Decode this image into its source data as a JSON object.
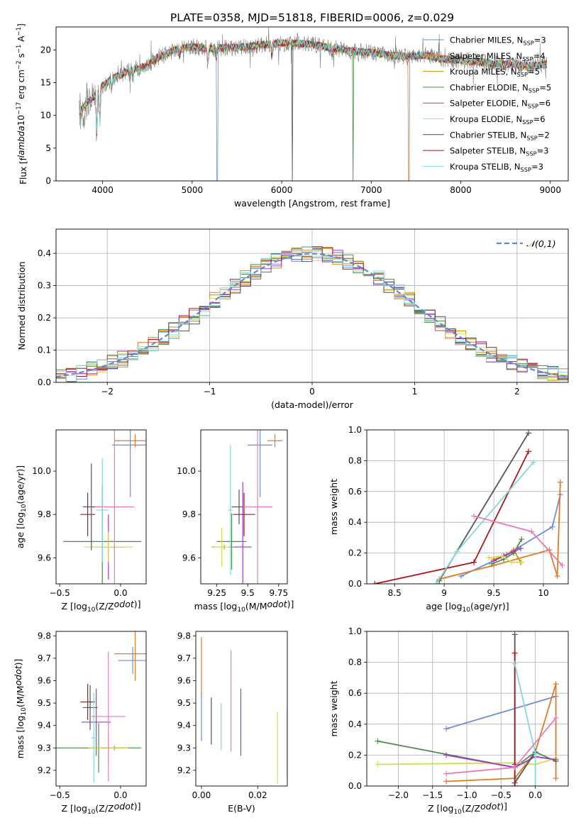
{
  "figure_title": "PLATE=0358, MJD=51818, FIBERID=0006, z=0.029",
  "colors": {
    "Chabrier MILES": "#6a8fd8",
    "Salpeter MILES": "#e07b28",
    "Kroupa MILES": "#c8960a",
    "Chabrier ELODIE": "#4d8a4d",
    "Salpeter ELODIE": "#a03cc0",
    "Kroupa ELODIE": "#d4dc50",
    "Chabrier STELIB": "#555555",
    "Salpeter STELIB": "#a81818",
    "Kroupa STELIB": "#84d8d8",
    "pink": "#e87ab8",
    "grey_data": "#7f7f7f"
  },
  "chart_data": [
    {
      "id": "spectrum",
      "type": "line",
      "title": "PLATE=0358, MJD=51818, FIBERID=0006, z=0.029",
      "xlabel": "wavelength [Angstrom, rest frame]",
      "ylabel": "Flux [f$_\\lambda$10$^{-17}$ erg cm$^{-2}$ s$^{-1}$ A$^{-1}$]",
      "xlim": [
        3480,
        9200
      ],
      "ylim": [
        0,
        23.5
      ],
      "xticks": [
        4000,
        5000,
        6000,
        7000,
        8000,
        9000
      ],
      "yticks": [
        0,
        5,
        10,
        15,
        20
      ],
      "grid": false,
      "legend_position": "top-right",
      "legend": [
        {
          "label": "Chabrier MILES, N$_{SSP}$=3",
          "series": "Chabrier MILES"
        },
        {
          "label": "Salpeter MILES, N$_{SSP}$=4",
          "series": "Salpeter MILES"
        },
        {
          "label": "Kroupa MILES, N$_{SSP}$=5",
          "series": "Kroupa MILES"
        },
        {
          "label": "Chabrier ELODIE, N$_{SSP}$=5",
          "series": "Chabrier ELODIE"
        },
        {
          "label": "Salpeter ELODIE, N$_{SSP}$=6",
          "series": "Salpeter ELODIE"
        },
        {
          "label": "Kroupa ELODIE, N$_{SSP}$=6",
          "series": "Kroupa ELODIE"
        },
        {
          "label": "Chabrier STELIB, N$_{SSP}$=2",
          "series": "Chabrier STELIB"
        },
        {
          "label": "Salpeter STELIB, N$_{SSP}$=3",
          "series": "Salpeter STELIB"
        },
        {
          "label": "Kroupa STELIB, N$_{SSP}$=3",
          "series": "Kroupa STELIB"
        }
      ],
      "data_envelope": {
        "x": [
          3750,
          3800,
          3900,
          4000,
          4100,
          4200,
          4300,
          4400,
          4500,
          4600,
          4700,
          4800,
          5000,
          5200,
          5400,
          5600,
          5800,
          6000,
          6200,
          6400,
          6600,
          6800,
          7000,
          7200,
          7400,
          7600,
          7800,
          8000,
          8200,
          8400,
          8600,
          8800,
          8950
        ],
        "y": [
          10.5,
          11.5,
          12.8,
          14.5,
          15.5,
          16.2,
          17.0,
          17.2,
          17.5,
          18.8,
          19.2,
          20.0,
          20.5,
          20.2,
          20.3,
          20.5,
          20.8,
          21.0,
          21.0,
          20.7,
          20.2,
          19.8,
          19.6,
          19.2,
          19.0,
          19.2,
          18.6,
          18.4,
          18.2,
          17.9,
          17.7,
          17.6,
          17.8
        ]
      },
      "absorption_features": [
        {
          "x": 3934,
          "depth": 6.0
        },
        {
          "x": 3969,
          "depth": 5.5
        },
        {
          "x": 4102,
          "depth": 1.5
        },
        {
          "x": 4305,
          "depth": 2.0
        },
        {
          "x": 4340,
          "depth": 1.5
        },
        {
          "x": 4861,
          "depth": 1.2
        },
        {
          "x": 5175,
          "depth": 2.5
        },
        {
          "x": 5270,
          "depth": 1.3
        },
        {
          "x": 5890,
          "depth": 2.0
        },
        {
          "x": 6563,
          "depth": 1.0
        }
      ],
      "artifact_drops": [
        {
          "x": 5280,
          "series": "Chabrier MILES"
        },
        {
          "x": 6120,
          "series": "Chabrier STELIB"
        },
        {
          "x": 6800,
          "series": "Chabrier ELODIE"
        },
        {
          "x": 7420,
          "series": "Salpeter MILES"
        }
      ]
    },
    {
      "id": "residuals",
      "type": "histogram",
      "xlabel": "(data-model)/error",
      "ylabel": "Normed distribution",
      "xlim": [
        -2.5,
        2.5
      ],
      "ylim": [
        0,
        0.475
      ],
      "xticks": [
        -2,
        -1,
        0,
        1,
        2
      ],
      "yticks": [
        0.0,
        0.1,
        0.2,
        0.3,
        0.4
      ],
      "grid": true,
      "legend_position": "top-right",
      "legend": [
        {
          "label": "$\\mathcal{N}(0,1)$",
          "style": "dashed",
          "color": "#5b8bd8"
        }
      ],
      "bin_width": 0.1,
      "bin_start": -2.5,
      "normal_pdf": {
        "mu": 0,
        "sigma": 1
      },
      "bin_jitter_seeds": [
        3,
        7,
        11,
        17,
        23,
        29,
        31,
        37,
        41
      ]
    },
    {
      "id": "age_vs_Z",
      "type": "errorbar",
      "xlabel": "Z [log$_{10}$(Z/Z$_\\odot$)]",
      "ylabel": "age  [log$_{10}$(age/yr)]",
      "xlim": [
        -0.53,
        0.21
      ],
      "ylim": [
        9.48,
        10.19
      ],
      "xticks": [
        -0.5,
        0.0
      ],
      "xticklabels": [
        "−0.5",
        "0.0"
      ],
      "yticks": [
        9.6,
        9.8,
        10.0
      ],
      "grid": false,
      "points": [
        {
          "series": "Chabrier MILES",
          "x": 0.08,
          "y": 10.12,
          "xerr": 0.15,
          "yerr": 0.24
        },
        {
          "series": "Salpeter MILES",
          "x": 0.12,
          "y": 10.14,
          "xerr": 0.17,
          "yerr": 0.03
        },
        {
          "series": "Kroupa MILES",
          "x": -0.05,
          "y": 9.65,
          "xerr": 0.1,
          "yerr": 0.01
        },
        {
          "series": "Chabrier ELODIE",
          "x": -0.15,
          "y": 9.675,
          "xerr": 0.32,
          "yerr": 0.26
        },
        {
          "series": "Salpeter ELODIE",
          "x": -0.1,
          "y": 9.65,
          "xerr": 0.13,
          "yerr": 0.15
        },
        {
          "series": "Kroupa ELODIE",
          "x": -0.1,
          "y": 9.65,
          "xerr": 0.2,
          "yerr": 0.07
        },
        {
          "series": "Chabrier STELIB",
          "x": -0.24,
          "y": 9.835,
          "xerr": 0.07,
          "yerr": 0.2
        },
        {
          "series": "Salpeter STELIB",
          "x": -0.27,
          "y": 9.8,
          "xerr": 0.06,
          "yerr": 0.1
        },
        {
          "series": "Kroupa STELIB",
          "x": -0.15,
          "y": 9.82,
          "xerr": 0.05,
          "yerr": 0.24
        },
        {
          "series": "pink",
          "x": -0.05,
          "y": 9.835,
          "xerr": 0.16,
          "yerr": 0.5
        }
      ]
    },
    {
      "id": "age_vs_mass",
      "type": "errorbar",
      "xlabel": "mass [log$_{10}$(M/M$_\\odot$)]",
      "ylabel": "",
      "xlim": [
        9.12,
        9.82
      ],
      "ylim": [
        9.48,
        10.19
      ],
      "xticks": [
        9.25,
        9.5,
        9.75
      ],
      "yticks": [
        9.6,
        9.8,
        10.0
      ],
      "grid": false,
      "points": [
        {
          "series": "Chabrier MILES",
          "x": 9.6,
          "y": 10.12,
          "xerr": 0.1,
          "yerr": 0.24
        },
        {
          "series": "Salpeter MILES",
          "x": 9.72,
          "y": 10.14,
          "xerr": 0.06,
          "yerr": 0.03
        },
        {
          "series": "Kroupa MILES",
          "x": 9.31,
          "y": 9.65,
          "xerr": 0.1,
          "yerr": 0.01
        },
        {
          "series": "Chabrier ELODIE",
          "x": 9.37,
          "y": 9.675,
          "xerr": 0.12,
          "yerr": 0.13
        },
        {
          "series": "Salpeter ELODIE",
          "x": 9.46,
          "y": 9.65,
          "xerr": 0.07,
          "yerr": 0.3
        },
        {
          "series": "Kroupa ELODIE",
          "x": 9.29,
          "y": 9.65,
          "xerr": 0.06,
          "yerr": 0.09
        },
        {
          "series": "Chabrier STELIB",
          "x": 9.43,
          "y": 9.835,
          "xerr": 0.06,
          "yerr": 0.08
        },
        {
          "series": "Salpeter STELIB",
          "x": 9.47,
          "y": 9.8,
          "xerr": 0.09,
          "yerr": 0.1
        },
        {
          "series": "Kroupa STELIB",
          "x": 9.36,
          "y": 9.82,
          "xerr": 0.02,
          "yerr": 0.3
        },
        {
          "series": "pink",
          "x": 9.58,
          "y": 9.835,
          "xerr": 0.12,
          "yerr": 0.5
        }
      ]
    },
    {
      "id": "mass_weight_vs_age",
      "type": "line",
      "xlabel": "age  [log$_{10}$(age/yr)]",
      "ylabel": "mass weight",
      "xlim": [
        8.22,
        10.25
      ],
      "ylim": [
        0,
        1.0
      ],
      "xticks": [
        8.5,
        9.0,
        9.5,
        10.0
      ],
      "yticks": [
        0.0,
        0.2,
        0.4,
        0.6,
        0.8,
        1.0
      ],
      "grid": true,
      "series": [
        {
          "name": "Chabrier MILES",
          "x": [
            9.17,
            9.63,
            10.09,
            10.17
          ],
          "y": [
            0.05,
            0.19,
            0.37,
            0.58
          ]
        },
        {
          "name": "Salpeter MILES",
          "x": [
            8.95,
            9.5,
            10.06,
            10.14,
            10.17
          ],
          "y": [
            0.03,
            0.12,
            0.22,
            0.05,
            0.66
          ]
        },
        {
          "name": "Kroupa MILES",
          "x": [
            9.5,
            9.6,
            9.7,
            9.77
          ],
          "y": [
            0.16,
            0.18,
            0.22,
            0.14
          ]
        },
        {
          "name": "Chabrier ELODIE",
          "x": [
            9.48,
            9.6,
            9.7,
            9.78
          ],
          "y": [
            0.13,
            0.16,
            0.2,
            0.29
          ]
        },
        {
          "name": "Salpeter ELODIE",
          "x": [
            9.5,
            9.6,
            9.7,
            9.77
          ],
          "y": [
            0.15,
            0.18,
            0.21,
            0.23
          ]
        },
        {
          "name": "Kroupa ELODIE",
          "x": [
            9.45,
            9.58,
            9.68,
            9.78
          ],
          "y": [
            0.17,
            0.18,
            0.14,
            0.14
          ]
        },
        {
          "name": "Chabrier STELIB",
          "x": [
            8.95,
            9.85
          ],
          "y": [
            0.02,
            0.98
          ]
        },
        {
          "name": "Salpeter STELIB",
          "x": [
            8.3,
            9.3,
            9.85
          ],
          "y": [
            0.0,
            0.14,
            0.86
          ]
        },
        {
          "name": "Kroupa STELIB",
          "x": [
            8.92,
            9.13,
            9.9
          ],
          "y": [
            0.0,
            0.21,
            0.79
          ]
        },
        {
          "name": "pink",
          "x": [
            9.3,
            9.88,
            10.19
          ],
          "y": [
            0.44,
            0.34,
            0.12
          ]
        }
      ]
    },
    {
      "id": "mass_vs_Z",
      "type": "errorbar",
      "xlabel": "Z [log$_{10}$(Z/Z$_\\odot$)]",
      "ylabel": "mass [log$_{10}$(M/M$_\\odot$)]",
      "xlim": [
        -0.53,
        0.21
      ],
      "ylim": [
        9.13,
        9.82
      ],
      "xticks": [
        -0.5,
        0.0
      ],
      "xticklabels": [
        "−0.5",
        "0.0"
      ],
      "yticks": [
        9.2,
        9.3,
        9.4,
        9.5,
        9.6,
        9.7,
        9.8
      ],
      "grid": false,
      "points": [
        {
          "series": "Chabrier MILES",
          "x": 0.1,
          "y": 9.69,
          "xerr": 0.12,
          "yerr": 0.06
        },
        {
          "series": "Salpeter MILES",
          "x": 0.12,
          "y": 9.72,
          "xerr": 0.17,
          "yerr": 0.12
        },
        {
          "series": "Kroupa MILES",
          "x": -0.05,
          "y": 9.3,
          "xerr": 0.1,
          "yerr": 0.01
        },
        {
          "series": "Chabrier ELODIE",
          "x": -0.18,
          "y": 9.3,
          "xerr": 0.35,
          "yerr": 0.11
        },
        {
          "series": "Salpeter ELODIE",
          "x": -0.2,
          "y": 9.415,
          "xerr": 0.12,
          "yerr": 0.15
        },
        {
          "series": "Kroupa ELODIE",
          "x": -0.1,
          "y": 9.3,
          "xerr": 0.16,
          "yerr": 0.07
        },
        {
          "series": "Chabrier STELIB",
          "x": -0.25,
          "y": 9.48,
          "xerr": 0.06,
          "yerr": 0.1
        },
        {
          "series": "Salpeter STELIB",
          "x": -0.27,
          "y": 9.505,
          "xerr": 0.06,
          "yerr": 0.08
        },
        {
          "series": "Kroupa STELIB",
          "x": -0.22,
          "y": 9.345,
          "xerr": 0.02,
          "yerr": 0.2
        },
        {
          "series": "pink",
          "x": -0.1,
          "y": 9.44,
          "xerr": 0.14,
          "yerr": 0.29
        }
      ]
    },
    {
      "id": "mass_vs_EBV",
      "type": "errorbar",
      "xlabel": "E(B-V)",
      "ylabel": "",
      "xlim": [
        -0.002,
        0.0305
      ],
      "ylim": [
        9.13,
        9.82
      ],
      "xticks": [
        0.0,
        0.02
      ],
      "xticklabels": [
        "0.00",
        "0.02"
      ],
      "yticks": [
        9.2,
        9.3,
        9.4,
        9.5,
        9.6,
        9.7,
        9.8
      ],
      "grid": false,
      "points": [
        {
          "series": "Chabrier MILES",
          "x": 0.0,
          "y": 9.44,
          "yerr": 0.11
        },
        {
          "series": "Salpeter MILES",
          "x": 0.0,
          "y": 9.665,
          "yerr": 0.13
        },
        {
          "series": "Chabrier STELIB",
          "x": 0.0035,
          "y": 9.42,
          "yerr": 0.105
        },
        {
          "series": "Kroupa STELIB",
          "x": 0.007,
          "y": 9.395,
          "yerr": 0.105
        },
        {
          "series": "pink",
          "x": 0.0105,
          "y": 9.51,
          "yerr": 0.225
        },
        {
          "series": "Salpeter ELODIE",
          "x": 0.014,
          "y": 9.415,
          "yerr": 0.15
        },
        {
          "series": "Kroupa ELODIE",
          "x": 0.027,
          "y": 9.3,
          "yerr": 0.16
        },
        {
          "series": "Chabrier ELODIE",
          "x": 0.0305,
          "y": 9.32,
          "yerr": 0.16
        }
      ]
    },
    {
      "id": "mass_weight_vs_Z",
      "type": "line",
      "xlabel": "Z [log$_{10}$(Z/Z$_\\odot$)]",
      "ylabel": "mass weight",
      "xlim": [
        -2.46,
        0.48
      ],
      "ylim": [
        0,
        1.0
      ],
      "xticks": [
        -2.0,
        -1.5,
        -1.0,
        -0.5,
        0.0
      ],
      "xticklabels": [
        "−2.0",
        "−1.5",
        "−1.0",
        "−0.5",
        "0.0"
      ],
      "yticks": [
        0.0,
        0.2,
        0.4,
        0.6,
        0.8,
        1.0
      ],
      "grid": true,
      "series": [
        {
          "name": "Chabrier MILES",
          "x": [
            -1.3,
            0.3
          ],
          "y": [
            0.37,
            0.58
          ]
        },
        {
          "name": "Salpeter MILES",
          "x": [
            -1.3,
            -0.3,
            0.0,
            0.3,
            0.3
          ],
          "y": [
            0.03,
            0.05,
            0.22,
            0.66,
            0.05
          ]
        },
        {
          "name": "Chabrier ELODIE",
          "x": [
            -2.3,
            -0.3,
            0.0,
            0.3
          ],
          "y": [
            0.29,
            0.12,
            0.22,
            0.16
          ]
        },
        {
          "name": "Kroupa ELODIE",
          "x": [
            -2.3,
            -0.3,
            0.0,
            0.3
          ],
          "y": [
            0.14,
            0.15,
            0.14,
            0.18
          ]
        },
        {
          "name": "Salpeter ELODIE",
          "x": [
            -1.3,
            -0.3,
            0.0,
            0.3
          ],
          "y": [
            0.2,
            0.12,
            0.19,
            0.17
          ]
        },
        {
          "name": "Chabrier STELIB",
          "x": [
            -0.3,
            -0.3,
            0.0
          ],
          "y": [
            0.98,
            0.02,
            0.22
          ]
        },
        {
          "name": "Salpeter STELIB",
          "x": [
            -0.3,
            -0.3,
            -0.3
          ],
          "y": [
            0.86,
            0.14,
            0.0
          ]
        },
        {
          "name": "Kroupa STELIB",
          "x": [
            -0.3,
            0.0,
            0.0
          ],
          "y": [
            0.79,
            0.21,
            0.0
          ]
        },
        {
          "name": "pink",
          "x": [
            -1.3,
            -0.3,
            0.3
          ],
          "y": [
            0.08,
            0.12,
            0.44
          ]
        }
      ]
    }
  ]
}
